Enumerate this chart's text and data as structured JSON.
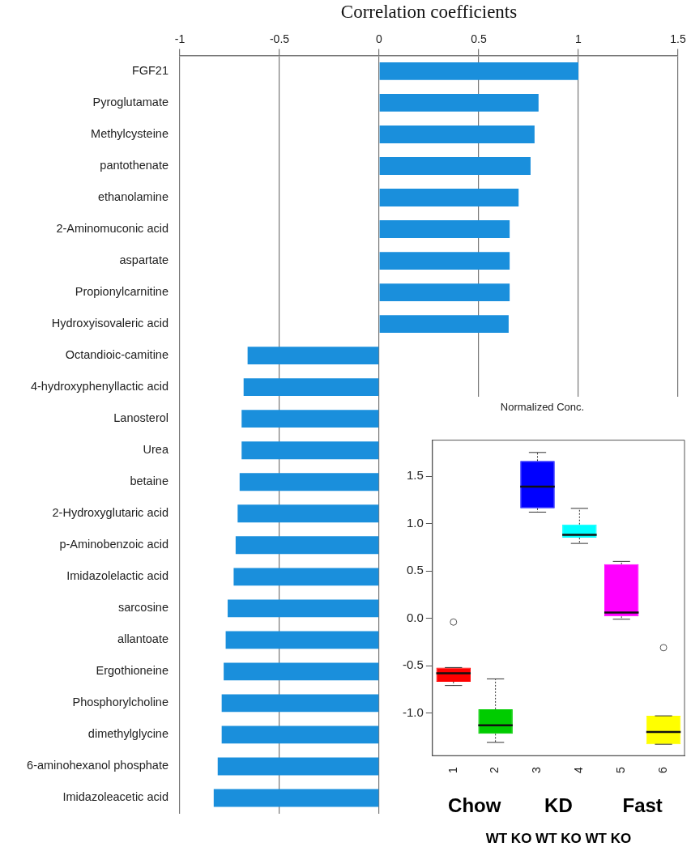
{
  "chart_data": [
    {
      "type": "bar",
      "orientation": "horizontal",
      "xlabel": "Correlation coefficients",
      "categories": [
        "FGF21",
        "Pyroglutamate",
        "Methylcysteine",
        "pantothenate",
        "ethanolamine",
        "2-Aminomuconic acid",
        "aspartate",
        "Propionylcarnitine",
        "Hydroxyisovaleric acid",
        "Octandioic-camitine",
        "4-hydroxyphenyllactic acid",
        "Lanosterol",
        "Urea",
        "betaine",
        "2-Hydroxyglutaric acid",
        "p-Aminobenzoic acid",
        "Imidazolelactic acid",
        "sarcosine",
        "allantoate",
        "Ergothioneine",
        "Phosphorylcholine",
        "dimethylglycine",
        "6-aminohexanol phosphate",
        "Imidazoleacetic acid"
      ],
      "values": [
        1.0,
        0.8,
        0.78,
        0.76,
        0.7,
        0.655,
        0.655,
        0.655,
        0.65,
        -0.66,
        -0.68,
        -0.69,
        -0.69,
        -0.7,
        -0.71,
        -0.72,
        -0.73,
        -0.76,
        -0.77,
        -0.78,
        -0.79,
        -0.79,
        -0.81,
        -0.83
      ],
      "color": "#1a8fdc",
      "xlim": [
        -1,
        1.5
      ],
      "xticks": [
        -1,
        -0.5,
        0,
        0.5,
        1,
        1.5
      ],
      "grid": "x"
    },
    {
      "type": "box",
      "title": "Normalized Conc.",
      "categories": [
        "1",
        "2",
        "3",
        "4",
        "5",
        "6"
      ],
      "colors": [
        "#ff0000",
        "#00cc00",
        "#0000ff",
        "#00ffff",
        "#ff00ff",
        "#ffff00"
      ],
      "boxes": [
        {
          "low": -0.71,
          "q1": -0.67,
          "median": -0.58,
          "q3": -0.52,
          "high": -0.52,
          "outliers": [
            -0.04
          ]
        },
        {
          "low": -1.31,
          "q1": -1.22,
          "median": -1.13,
          "q3": -0.96,
          "high": -0.64
        },
        {
          "low": 1.12,
          "q1": 1.16,
          "median": 1.39,
          "q3": 1.66,
          "high": 1.75
        },
        {
          "low": 0.79,
          "q1": 0.85,
          "median": 0.88,
          "q3": 0.99,
          "high": 1.16
        },
        {
          "low": -0.01,
          "q1": 0.02,
          "median": 0.06,
          "q3": 0.57,
          "high": 0.6
        },
        {
          "low": -1.33,
          "q1": -1.33,
          "median": -1.2,
          "q3": -1.03,
          "high": -1.03,
          "outliers": [
            -0.31
          ]
        }
      ],
      "ylim": [
        -1.45,
        1.88
      ],
      "yticks": [
        {
          "value": -1,
          "label": "-1.0"
        },
        {
          "value": -0.5,
          "label": "-0.5"
        },
        {
          "value": 0,
          "label": "0.0"
        },
        {
          "value": 0.5,
          "label": "0.5"
        },
        {
          "value": 1,
          "label": "1.0"
        },
        {
          "value": 1.5,
          "label": "1.5"
        }
      ],
      "annotations": [
        "Chow",
        "KD",
        "Fast",
        "WT KO WT KO WT KO"
      ]
    }
  ]
}
